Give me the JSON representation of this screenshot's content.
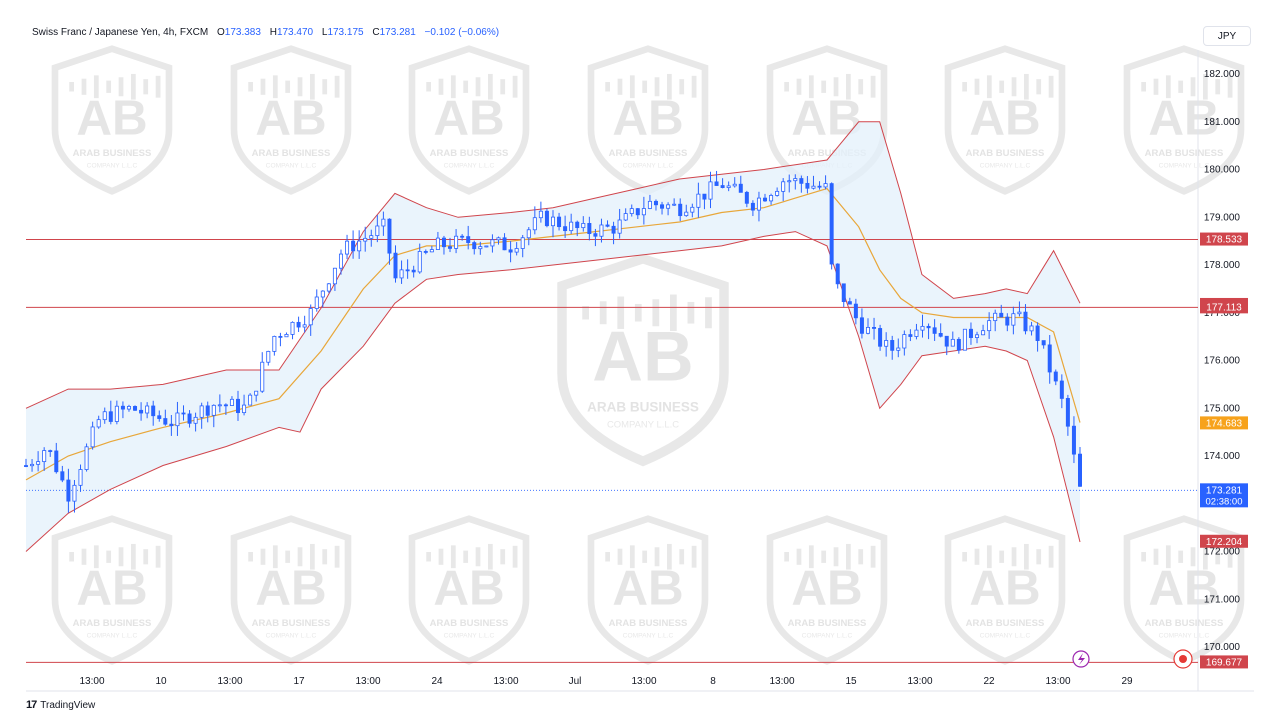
{
  "header": {
    "symbol": "Swiss Franc / Japanese Yen, 4h, FXCM",
    "open_label": "O",
    "open": "173.383",
    "high_label": "H",
    "high": "173.470",
    "low_label": "L",
    "low": "173.175",
    "close_label": "C",
    "close": "173.281",
    "change": "−0.102 (−0.06%)"
  },
  "currency_button": "JPY",
  "brand": {
    "name": "TradingView",
    "logo": "17"
  },
  "watermark": {
    "title": "ARAB BUSINESS",
    "subtitle": "COMPANY L.L.C",
    "monogram": "AB"
  },
  "colors": {
    "up": "#2962ff",
    "down": "#2962ff",
    "band": "#d0454c",
    "basis": "#e8a73a",
    "fill": "#e3f0fb",
    "level": "#d0454c"
  },
  "chart_data": {
    "type": "candlestick",
    "title": "Swiss Franc / Japanese Yen, 4h, FXCM",
    "ylim": [
      169.8,
      182.3
    ],
    "y_ticks": [
      "170.000",
      "171.000",
      "172.000",
      "173.000",
      "174.000",
      "175.000",
      "176.000",
      "177.000",
      "178.000",
      "179.000",
      "180.000",
      "181.000",
      "182.000"
    ],
    "x_ticks": [
      "13:00",
      "10",
      "13:00",
      "17",
      "13:00",
      "24",
      "13:00",
      "Jul",
      "13:00",
      "8",
      "13:00",
      "15",
      "13:00",
      "22",
      "13:00",
      "29"
    ],
    "close_path": [
      [
        0,
        173.8
      ],
      [
        0.02,
        174.2
      ],
      [
        0.04,
        173.2
      ],
      [
        0.07,
        174.8
      ],
      [
        0.1,
        175.0
      ],
      [
        0.14,
        174.7
      ],
      [
        0.18,
        175.1
      ],
      [
        0.21,
        175.0
      ],
      [
        0.235,
        176.5
      ],
      [
        0.27,
        177.0
      ],
      [
        0.3,
        178.3
      ],
      [
        0.34,
        178.8
      ],
      [
        0.35,
        177.7
      ],
      [
        0.39,
        178.4
      ],
      [
        0.42,
        178.5
      ],
      [
        0.46,
        178.4
      ],
      [
        0.49,
        179.0
      ],
      [
        0.53,
        178.7
      ],
      [
        0.56,
        178.8
      ],
      [
        0.59,
        179.3
      ],
      [
        0.62,
        179.2
      ],
      [
        0.66,
        179.7
      ],
      [
        0.69,
        179.3
      ],
      [
        0.72,
        179.8
      ],
      [
        0.76,
        179.6
      ],
      [
        0.765,
        177.7
      ],
      [
        0.79,
        176.8
      ],
      [
        0.82,
        176.2
      ],
      [
        0.85,
        176.9
      ],
      [
        0.88,
        176.3
      ],
      [
        0.91,
        176.8
      ],
      [
        0.94,
        176.9
      ],
      [
        0.96,
        176.5
      ],
      [
        0.985,
        175.0
      ],
      [
        1.0,
        173.3
      ]
    ],
    "bollinger_upper": [
      [
        0,
        175.0
      ],
      [
        0.04,
        175.4
      ],
      [
        0.08,
        175.4
      ],
      [
        0.13,
        175.5
      ],
      [
        0.19,
        175.8
      ],
      [
        0.24,
        175.8
      ],
      [
        0.28,
        177.1
      ],
      [
        0.32,
        178.7
      ],
      [
        0.35,
        179.5
      ],
      [
        0.38,
        179.2
      ],
      [
        0.41,
        179.0
      ],
      [
        0.46,
        179.1
      ],
      [
        0.5,
        179.2
      ],
      [
        0.54,
        179.4
      ],
      [
        0.58,
        179.6
      ],
      [
        0.62,
        179.8
      ],
      [
        0.66,
        179.9
      ],
      [
        0.7,
        180.0
      ],
      [
        0.73,
        180.1
      ],
      [
        0.76,
        180.2
      ],
      [
        0.79,
        181.0
      ],
      [
        0.81,
        181.0
      ],
      [
        0.83,
        179.5
      ],
      [
        0.85,
        177.8
      ],
      [
        0.88,
        177.3
      ],
      [
        0.91,
        177.4
      ],
      [
        0.93,
        177.5
      ],
      [
        0.95,
        177.4
      ],
      [
        0.975,
        178.3
      ],
      [
        1.0,
        177.2
      ]
    ],
    "bollinger_basis": [
      [
        0,
        173.5
      ],
      [
        0.04,
        174.0
      ],
      [
        0.08,
        174.3
      ],
      [
        0.13,
        174.6
      ],
      [
        0.19,
        174.9
      ],
      [
        0.24,
        175.2
      ],
      [
        0.28,
        176.2
      ],
      [
        0.32,
        177.5
      ],
      [
        0.35,
        178.2
      ],
      [
        0.38,
        178.4
      ],
      [
        0.41,
        178.4
      ],
      [
        0.46,
        178.5
      ],
      [
        0.5,
        178.6
      ],
      [
        0.54,
        178.7
      ],
      [
        0.58,
        178.8
      ],
      [
        0.62,
        178.9
      ],
      [
        0.66,
        179.1
      ],
      [
        0.7,
        179.2
      ],
      [
        0.73,
        179.4
      ],
      [
        0.76,
        179.6
      ],
      [
        0.79,
        178.8
      ],
      [
        0.81,
        177.9
      ],
      [
        0.83,
        177.3
      ],
      [
        0.85,
        177.0
      ],
      [
        0.88,
        176.9
      ],
      [
        0.91,
        176.9
      ],
      [
        0.93,
        176.9
      ],
      [
        0.95,
        176.9
      ],
      [
        0.975,
        176.6
      ],
      [
        1.0,
        174.7
      ]
    ],
    "bollinger_lower": [
      [
        0,
        172.0
      ],
      [
        0.04,
        172.8
      ],
      [
        0.08,
        173.3
      ],
      [
        0.13,
        173.8
      ],
      [
        0.19,
        174.2
      ],
      [
        0.24,
        174.6
      ],
      [
        0.26,
        174.5
      ],
      [
        0.28,
        175.4
      ],
      [
        0.32,
        176.3
      ],
      [
        0.35,
        177.2
      ],
      [
        0.38,
        177.7
      ],
      [
        0.41,
        177.8
      ],
      [
        0.46,
        177.9
      ],
      [
        0.5,
        178.0
      ],
      [
        0.54,
        178.1
      ],
      [
        0.58,
        178.2
      ],
      [
        0.62,
        178.3
      ],
      [
        0.66,
        178.4
      ],
      [
        0.7,
        178.6
      ],
      [
        0.73,
        178.7
      ],
      [
        0.76,
        178.4
      ],
      [
        0.79,
        176.5
      ],
      [
        0.81,
        175.0
      ],
      [
        0.83,
        175.5
      ],
      [
        0.85,
        176.1
      ],
      [
        0.88,
        176.2
      ],
      [
        0.91,
        176.3
      ],
      [
        0.93,
        176.2
      ],
      [
        0.95,
        176.0
      ],
      [
        0.975,
        174.4
      ],
      [
        1.0,
        172.2
      ]
    ],
    "levels": [
      {
        "name": "level-178533",
        "value": 178.533,
        "label": "178.533"
      },
      {
        "name": "level-177113",
        "value": 177.113,
        "label": "177.113"
      },
      {
        "name": "level-169677",
        "value": 169.677,
        "label": "169.677"
      }
    ],
    "price_labels": [
      {
        "name": "bb-upper-label",
        "value": 177.163,
        "label": "177.163",
        "color": "#d0454c"
      },
      {
        "name": "bb-basis-label",
        "value": 174.683,
        "label": "174.683",
        "color": "#f7a21b"
      },
      {
        "name": "bb-lower-label",
        "value": 172.204,
        "label": "172.204",
        "color": "#d0454c"
      }
    ],
    "last_price": {
      "value": 173.281,
      "label": "173.281",
      "countdown": "02:38:00",
      "color": "#2962ff"
    }
  }
}
